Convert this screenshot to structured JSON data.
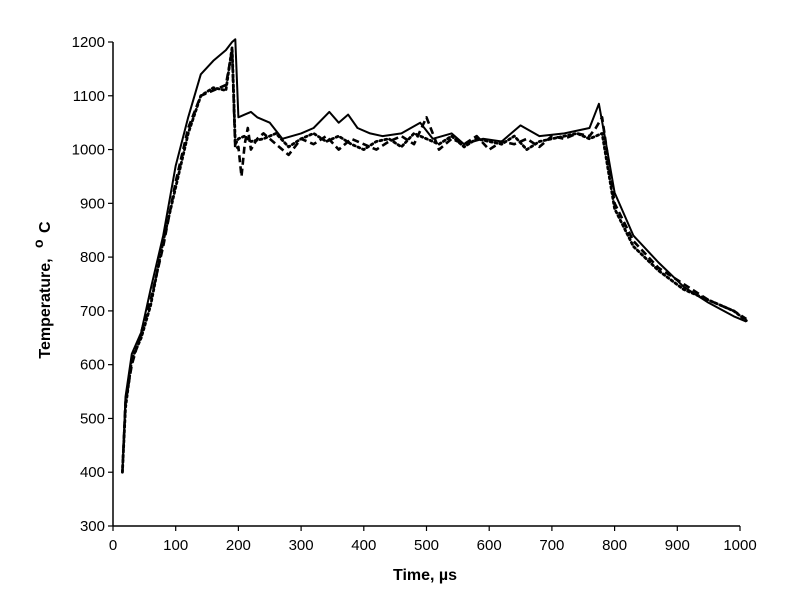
{
  "chart_data": {
    "type": "line",
    "title": "",
    "xlabel": "Time, µs",
    "ylabel": "Temperature, °C",
    "ylabel_main": "Temperature,",
    "ylabel_unit_sup": "o",
    "ylabel_unit": "C",
    "xlim": [
      0,
      1000
    ],
    "ylim": [
      300,
      1200
    ],
    "xticks": [
      0,
      100,
      200,
      300,
      400,
      500,
      600,
      700,
      800,
      900,
      1000
    ],
    "yticks": [
      300,
      400,
      500,
      600,
      700,
      800,
      900,
      1000,
      1100,
      1200
    ],
    "grid": false,
    "legend": "none",
    "series": [
      {
        "style": "solid",
        "color": "#000000",
        "x": [
          15,
          20,
          30,
          45,
          60,
          80,
          100,
          120,
          140,
          160,
          180,
          190,
          195,
          200,
          210,
          220,
          230,
          250,
          270,
          300,
          320,
          345,
          360,
          375,
          390,
          410,
          430,
          460,
          490,
          510,
          540,
          560,
          590,
          620,
          650,
          680,
          720,
          760,
          775,
          785,
          800,
          830,
          870,
          910,
          950,
          990,
          1010
        ],
        "y": [
          400,
          540,
          620,
          660,
          740,
          840,
          970,
          1060,
          1140,
          1165,
          1185,
          1200,
          1205,
          1060,
          1065,
          1070,
          1060,
          1050,
          1020,
          1030,
          1040,
          1070,
          1050,
          1065,
          1040,
          1030,
          1025,
          1030,
          1050,
          1020,
          1030,
          1010,
          1020,
          1015,
          1045,
          1025,
          1030,
          1040,
          1085,
          1020,
          920,
          840,
          790,
          745,
          715,
          690,
          680
        ]
      },
      {
        "style": "dashed",
        "color": "#000000",
        "x": [
          15,
          20,
          30,
          45,
          60,
          80,
          100,
          120,
          140,
          160,
          180,
          190,
          195,
          200,
          205,
          210,
          215,
          220,
          230,
          240,
          260,
          280,
          300,
          320,
          340,
          360,
          380,
          400,
          420,
          440,
          460,
          480,
          500,
          520,
          540,
          560,
          580,
          600,
          620,
          640,
          660,
          680,
          700,
          720,
          740,
          760,
          770,
          780,
          800,
          830,
          870,
          910,
          950,
          990,
          1010
        ],
        "y": [
          400,
          530,
          600,
          660,
          720,
          820,
          940,
          1040,
          1100,
          1110,
          1120,
          1185,
          1000,
          1005,
          950,
          1010,
          1040,
          1000,
          1020,
          1030,
          1010,
          990,
          1020,
          1010,
          1025,
          1000,
          1020,
          1010,
          1000,
          1015,
          1025,
          1010,
          1060,
          1000,
          1020,
          1010,
          1025,
          1000,
          1015,
          1010,
          1020,
          1005,
          1025,
          1020,
          1030,
          1025,
          1040,
          1060,
          900,
          830,
          780,
          750,
          720,
          700,
          685
        ]
      },
      {
        "style": "dotted",
        "color": "#000000",
        "x": [
          15,
          20,
          30,
          45,
          60,
          80,
          100,
          120,
          140,
          160,
          180,
          190,
          195,
          200,
          210,
          220,
          240,
          260,
          280,
          300,
          320,
          340,
          360,
          380,
          400,
          420,
          440,
          460,
          480,
          500,
          520,
          540,
          560,
          580,
          600,
          620,
          640,
          660,
          680,
          700,
          720,
          740,
          760,
          780,
          800,
          830,
          870,
          910,
          950,
          990,
          1010
        ],
        "y": [
          400,
          520,
          610,
          650,
          710,
          830,
          930,
          1030,
          1100,
          1115,
          1110,
          1190,
          1010,
          1020,
          1025,
          1015,
          1020,
          1030,
          1005,
          1020,
          1030,
          1015,
          1025,
          1010,
          1000,
          1015,
          1020,
          1005,
          1030,
          1020,
          1010,
          1025,
          1005,
          1020,
          1015,
          1010,
          1025,
          1000,
          1015,
          1020,
          1025,
          1030,
          1020,
          1030,
          890,
          820,
          775,
          740,
          720,
          700,
          682
        ]
      }
    ]
  }
}
